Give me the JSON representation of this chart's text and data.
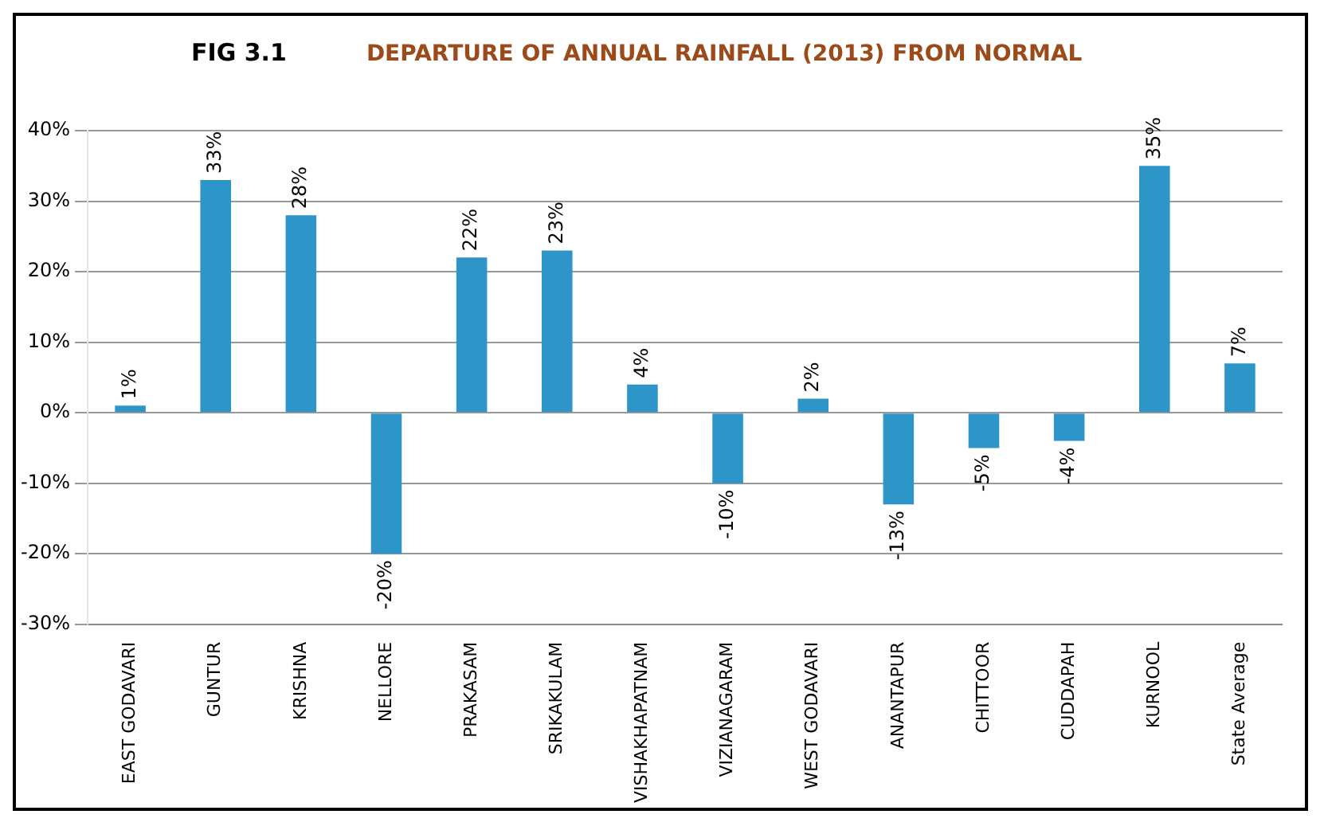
{
  "chart_data": {
    "type": "bar",
    "title": "FIG 3.1",
    "subtitle": "DEPARTURE OF ANNUAL RAINFALL (2013) FROM NORMAL",
    "categories": [
      "EAST GODAVARI",
      "GUNTUR",
      "KRISHNA",
      "NELLORE",
      "PRAKASAM",
      "SRIKAKULAM",
      "VISHAKHAPATNAM",
      "VIZIANAGARAM",
      "WEST GODAVARI",
      "ANANTAPUR",
      "CHITTOOR",
      "CUDDAPAH",
      "KURNOOL",
      "State Average"
    ],
    "values": [
      1,
      33,
      28,
      -20,
      22,
      23,
      4,
      -10,
      2,
      -13,
      -5,
      -4,
      35,
      7
    ],
    "value_labels": [
      "1%",
      "33%",
      "28%",
      "-20%",
      "22%",
      "23%",
      "4%",
      "-10%",
      "2%",
      "-13%",
      "-5%",
      "-4%",
      "35%",
      "7%"
    ],
    "color": "#2e95c8",
    "ylim": [
      -30,
      40
    ],
    "yticks": [
      {
        "value": -30,
        "label": "-30%"
      },
      {
        "value": -20,
        "label": "-20%"
      },
      {
        "value": -10,
        "label": "-10%"
      },
      {
        "value": 0,
        "label": "0%"
      },
      {
        "value": 10,
        "label": "10%"
      },
      {
        "value": 20,
        "label": "20%"
      },
      {
        "value": 30,
        "label": "30%"
      },
      {
        "value": 40,
        "label": "40%"
      }
    ],
    "grid": "y"
  }
}
